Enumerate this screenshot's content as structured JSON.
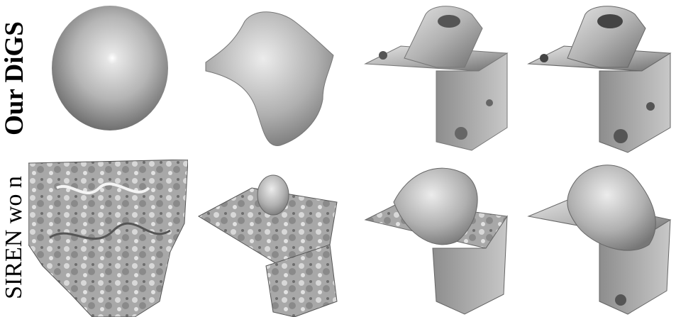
{
  "figure": {
    "row_labels": {
      "top": "Our DiGS",
      "bottom": "SIREN wo n"
    },
    "panels_top": [
      "sphere",
      "blob",
      "bracket-coarse",
      "bracket-fine"
    ],
    "panels_bottom": [
      "noise-cloud",
      "noisy-bracket-1",
      "noisy-bracket-2",
      "noisy-bracket-3"
    ],
    "colors": {
      "surface": "#b8b8b8",
      "highlight": "#f2f2f2",
      "shadow": "#555555"
    }
  }
}
